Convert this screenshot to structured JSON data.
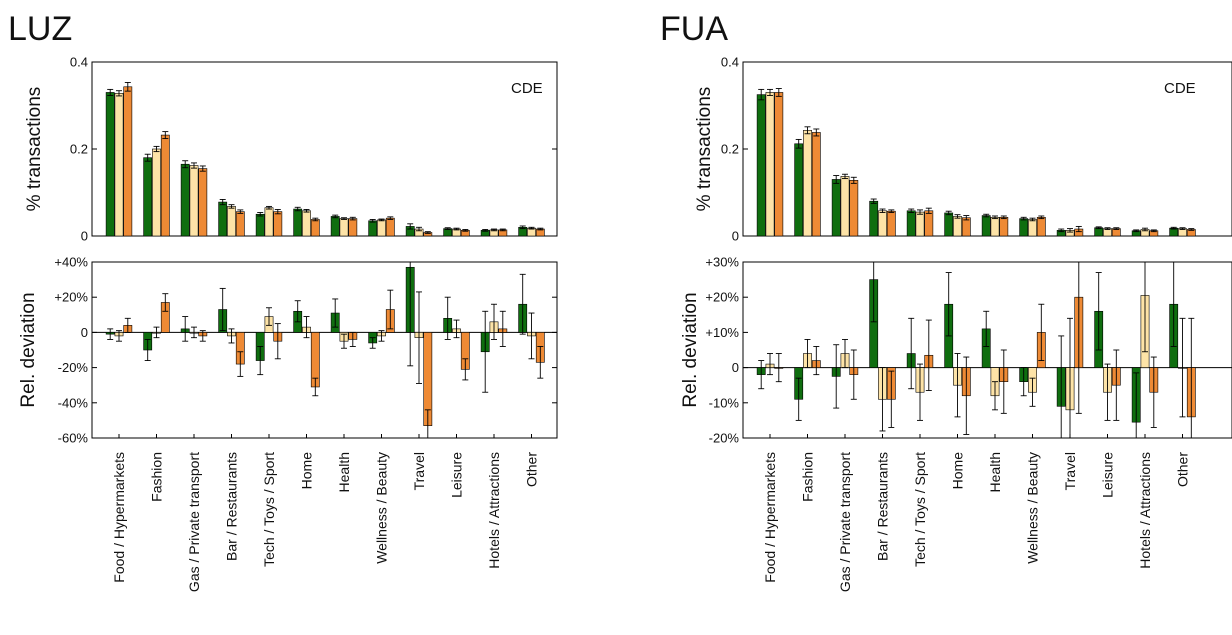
{
  "figure": {
    "colors": {
      "low": "#0f6e0f",
      "mid": "#fde3a7",
      "high": "#ee8a35"
    }
  },
  "chart_data": [
    {
      "type": "bar",
      "panel": "LUZ",
      "title": "LUZ",
      "annotation": "CDE",
      "categories": [
        "Food / Hypermarkets",
        "Fashion",
        "Gas / Private transport",
        "Bar / Restaurants",
        "Tech / Toys / Sport",
        "Home",
        "Health",
        "Wellness / Beauty",
        "Travel",
        "Leisure",
        "Hotels / Attractions",
        "Other"
      ],
      "top": {
        "ylabel": "% transactions",
        "ylim": [
          0,
          0.4
        ],
        "yticks": [
          "0",
          "0.2",
          "0.4"
        ],
        "series": [
          {
            "values": [
              0.33,
              0.18,
              0.165,
              0.078,
              0.05,
              0.062,
              0.045,
              0.035,
              0.022,
              0.017,
              0.013,
              0.02
            ],
            "err": [
              0.007,
              0.008,
              0.008,
              0.006,
              0.004,
              0.004,
              0.003,
              0.003,
              0.006,
              0.002,
              0.002,
              0.003
            ]
          },
          {
            "values": [
              0.328,
              0.2,
              0.162,
              0.068,
              0.065,
              0.058,
              0.04,
              0.037,
              0.016,
              0.016,
              0.014,
              0.018
            ],
            "err": [
              0.006,
              0.006,
              0.006,
              0.004,
              0.003,
              0.003,
              0.002,
              0.002,
              0.004,
              0.002,
              0.002,
              0.002
            ]
          },
          {
            "values": [
              0.343,
              0.232,
              0.155,
              0.056,
              0.056,
              0.038,
              0.04,
              0.041,
              0.008,
              0.013,
              0.014,
              0.016
            ],
            "err": [
              0.01,
              0.008,
              0.006,
              0.004,
              0.005,
              0.003,
              0.003,
              0.003,
              0.002,
              0.002,
              0.002,
              0.002
            ]
          }
        ]
      },
      "bottom": {
        "ylabel": "Rel. deviation",
        "ylim": [
          -60,
          40
        ],
        "yticks": [
          "-60%",
          "-40%",
          "-20%",
          "0",
          "+20%",
          "+40%"
        ],
        "series": [
          {
            "values": [
              -1,
              -10,
              2,
              13,
              -16,
              12,
              11,
              -6,
              37,
              8,
              -11,
              16
            ],
            "err": [
              3,
              6,
              7,
              12,
              8,
              6,
              8,
              3,
              56,
              12,
              23,
              17
            ]
          },
          {
            "values": [
              -2,
              0,
              0,
              -2,
              9,
              3,
              -5,
              -2,
              -3,
              2,
              6,
              -2
            ],
            "err": [
              3,
              3,
              3,
              4,
              5,
              6,
              4,
              3,
              26,
              5,
              10,
              13
            ]
          },
          {
            "values": [
              4,
              17,
              -2,
              -18,
              -5,
              -31,
              -4,
              13,
              -53,
              -21,
              2,
              -17
            ],
            "err": [
              4,
              5,
              3,
              7,
              10,
              5,
              4,
              11,
              9,
              6,
              10,
              9
            ]
          }
        ]
      }
    },
    {
      "type": "bar",
      "panel": "FUA",
      "title": "FUA",
      "annotation": "CDE",
      "categories": [
        "Food / Hypermarkets",
        "Fashion",
        "Gas / Private transport",
        "Bar / Restaurants",
        "Tech / Toys / Sport",
        "Home",
        "Health",
        "Wellness / Beauty",
        "Travel",
        "Leisure",
        "Hotels / Attractions",
        "Other"
      ],
      "top": {
        "ylabel": "% transactions",
        "ylim": [
          0,
          0.4
        ],
        "yticks": [
          "0",
          "0.2",
          "0.4"
        ],
        "series": [
          {
            "values": [
              0.325,
              0.212,
              0.13,
              0.08,
              0.058,
              0.053,
              0.047,
              0.04,
              0.013,
              0.019,
              0.012,
              0.018
            ],
            "err": [
              0.012,
              0.01,
              0.009,
              0.005,
              0.004,
              0.004,
              0.003,
              0.003,
              0.003,
              0.002,
              0.002,
              0.002
            ]
          },
          {
            "values": [
              0.33,
              0.243,
              0.137,
              0.058,
              0.055,
              0.045,
              0.043,
              0.038,
              0.013,
              0.017,
              0.015,
              0.017
            ],
            "err": [
              0.007,
              0.008,
              0.005,
              0.004,
              0.005,
              0.004,
              0.003,
              0.003,
              0.004,
              0.002,
              0.003,
              0.002
            ]
          },
          {
            "values": [
              0.33,
              0.238,
              0.128,
              0.057,
              0.058,
              0.042,
              0.043,
              0.043,
              0.016,
              0.017,
              0.012,
              0.015
            ],
            "err": [
              0.009,
              0.008,
              0.007,
              0.003,
              0.006,
              0.005,
              0.003,
              0.003,
              0.006,
              0.002,
              0.002,
              0.002
            ]
          }
        ]
      },
      "bottom": {
        "ylabel": "Rel. deviation",
        "ylim": [
          -20,
          30
        ],
        "yticks": [
          "-20%",
          "-10%",
          "0",
          "+10%",
          "+20%",
          "+30%"
        ],
        "series": [
          {
            "values": [
              -2,
              -9,
              -2.5,
              25,
              4,
              18,
              11,
              -4,
              -11,
              16,
              -15.5,
              18
            ],
            "err": [
              4,
              6,
              9,
              12,
              10,
              9,
              5,
              4,
              20,
              11,
              14,
              12
            ]
          },
          {
            "values": [
              1,
              4,
              4,
              -9,
              -7,
              -5,
              -8,
              -7,
              -12,
              -7,
              20.5,
              0
            ],
            "err": [
              3,
              4,
              4,
              9,
              8,
              9,
              4,
              4,
              26,
              8,
              16,
              14
            ]
          },
          {
            "values": [
              0,
              2,
              -2,
              -9,
              3.5,
              -8,
              -4,
              10,
              20,
              -5,
              -7,
              -14
            ],
            "err": [
              4,
              4,
              7,
              8,
              10,
              11,
              9,
              8,
              33,
              10,
              10,
              28
            ]
          }
        ]
      }
    }
  ]
}
